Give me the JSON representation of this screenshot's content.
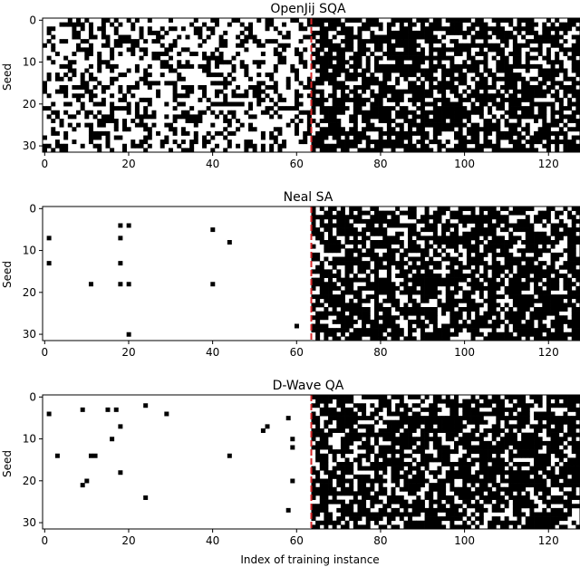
{
  "figure": {
    "xlabel": "Index of training instance"
  },
  "colors": {
    "solved": "#000000",
    "unsolved": "#ffffff",
    "divider": "#d62728"
  },
  "chart_data": [
    {
      "type": "heatmap",
      "title": "OpenJij SQA",
      "ylabel": "Seed",
      "xlabel": "",
      "xlim": [
        0,
        127
      ],
      "ylim": [
        31,
        0
      ],
      "x_ticks": [
        0,
        20,
        40,
        60,
        80,
        100,
        120
      ],
      "y_ticks": [
        0,
        10,
        20,
        30
      ],
      "divider_x": 63.5,
      "grid": false,
      "pattern": {
        "left_density": 0.35,
        "right_density": 0.7,
        "split": 64,
        "seed": 11
      },
      "points": []
    },
    {
      "type": "heatmap",
      "title": "Neal SA",
      "ylabel": "Seed",
      "xlabel": "",
      "xlim": [
        0,
        127
      ],
      "ylim": [
        31,
        0
      ],
      "x_ticks": [
        0,
        20,
        40,
        60,
        80,
        100,
        120
      ],
      "y_ticks": [
        0,
        10,
        20,
        30
      ],
      "divider_x": 63.5,
      "grid": false,
      "pattern": {
        "left_density": 0.0,
        "right_density": 0.7,
        "split": 64,
        "seed": 23
      },
      "points": [
        [
          1,
          7
        ],
        [
          1,
          13
        ],
        [
          11,
          18
        ],
        [
          18,
          4
        ],
        [
          20,
          4
        ],
        [
          18,
          7
        ],
        [
          18,
          13
        ],
        [
          18,
          18
        ],
        [
          20,
          18
        ],
        [
          20,
          30
        ],
        [
          40,
          5
        ],
        [
          44,
          8
        ],
        [
          40,
          18
        ],
        [
          60,
          28
        ]
      ]
    },
    {
      "type": "heatmap",
      "title": "D-Wave QA",
      "ylabel": "Seed",
      "xlabel": "Index of training instance",
      "xlim": [
        0,
        127
      ],
      "ylim": [
        31,
        0
      ],
      "x_ticks": [
        0,
        20,
        40,
        60,
        80,
        100,
        120
      ],
      "y_ticks": [
        0,
        10,
        20,
        30
      ],
      "divider_x": 63.5,
      "grid": false,
      "pattern": {
        "left_density": 0.0,
        "right_density": 0.7,
        "split": 64,
        "seed": 37
      },
      "points": [
        [
          1,
          4
        ],
        [
          9,
          3
        ],
        [
          15,
          3
        ],
        [
          17,
          3
        ],
        [
          18,
          7
        ],
        [
          24,
          2
        ],
        [
          29,
          4
        ],
        [
          16,
          10
        ],
        [
          3,
          14
        ],
        [
          11,
          14
        ],
        [
          12,
          14
        ],
        [
          10,
          20
        ],
        [
          9,
          21
        ],
        [
          18,
          18
        ],
        [
          24,
          24
        ],
        [
          44,
          14
        ],
        [
          52,
          8
        ],
        [
          53,
          7
        ],
        [
          58,
          5
        ],
        [
          59,
          10
        ],
        [
          59,
          12
        ],
        [
          59,
          20
        ],
        [
          58,
          27
        ]
      ]
    }
  ]
}
